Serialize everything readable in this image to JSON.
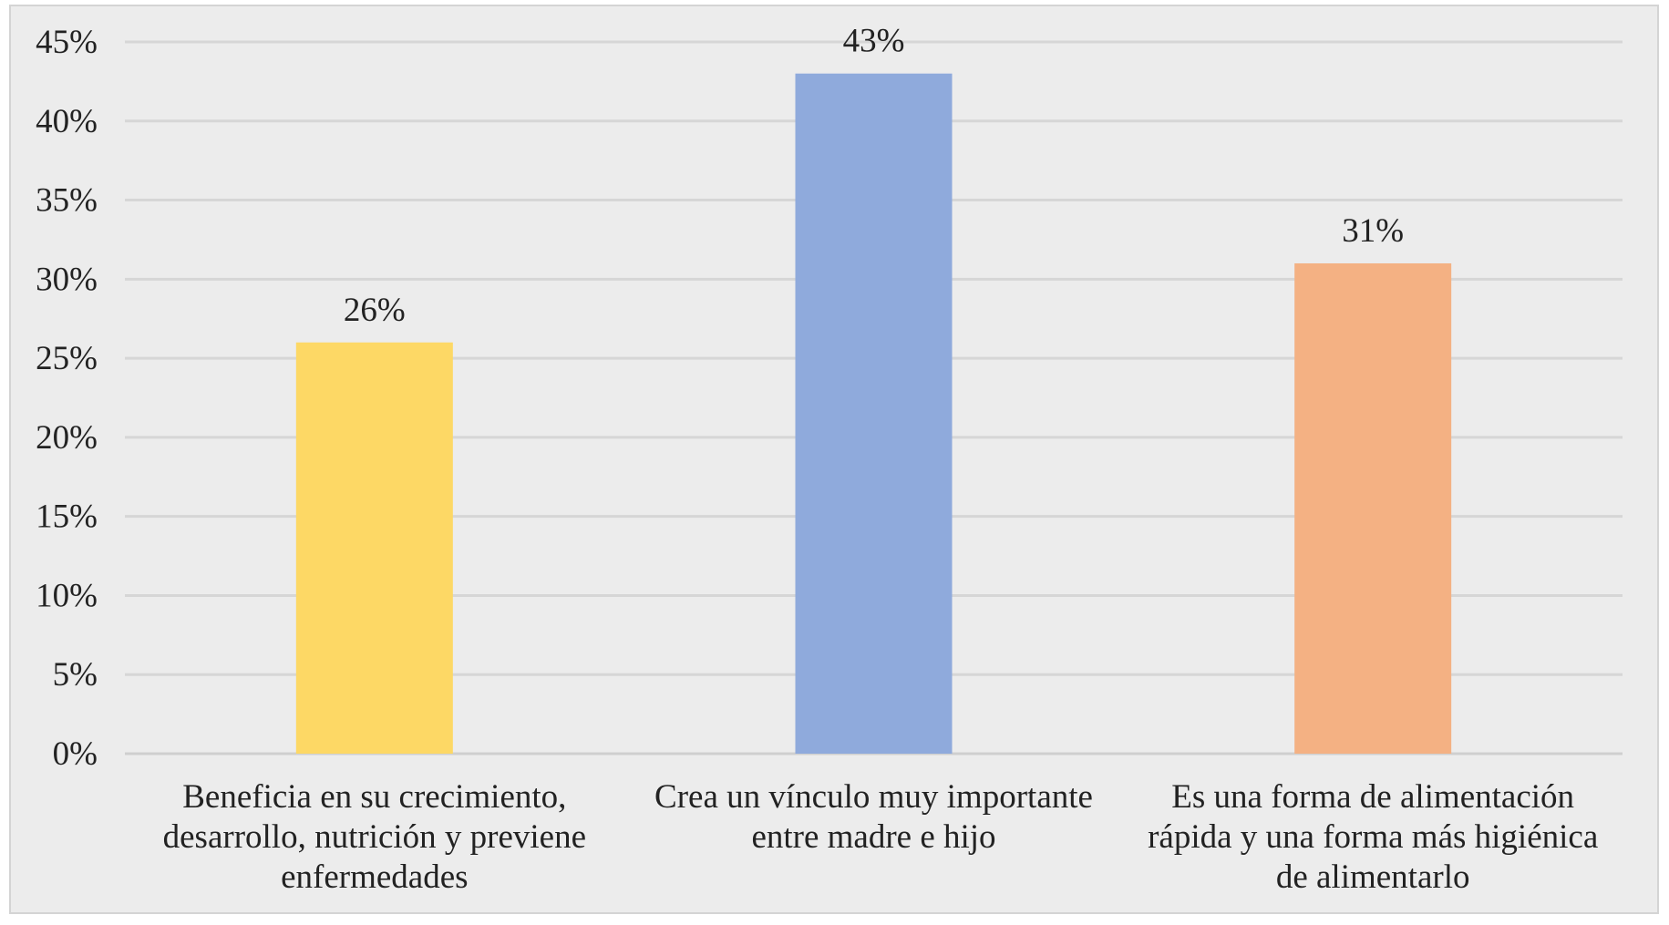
{
  "chart_data": {
    "type": "bar",
    "categories": [
      [
        "Beneficia en su crecimiento,",
        "desarrollo, nutrición y previene",
        "enfermedades"
      ],
      [
        "Crea un vínculo muy importante",
        "entre madre e hijo"
      ],
      [
        "Es una forma de alimentación",
        "rápida y una forma más higiénica",
        "de alimentarlo"
      ]
    ],
    "values": [
      26,
      43,
      31
    ],
    "data_labels": [
      "26%",
      "43%",
      "31%"
    ],
    "colors": [
      "#fdd865",
      "#8faadc",
      "#f4b183"
    ],
    "ylim": [
      0,
      45
    ],
    "yticks": [
      0,
      5,
      10,
      15,
      20,
      25,
      30,
      35,
      40,
      45
    ],
    "ytick_labels": [
      "0%",
      "5%",
      "10%",
      "15%",
      "20%",
      "25%",
      "30%",
      "35%",
      "40%",
      "45%"
    ],
    "title": "",
    "xlabel": "",
    "ylabel": "",
    "grid": true,
    "legend": false
  }
}
